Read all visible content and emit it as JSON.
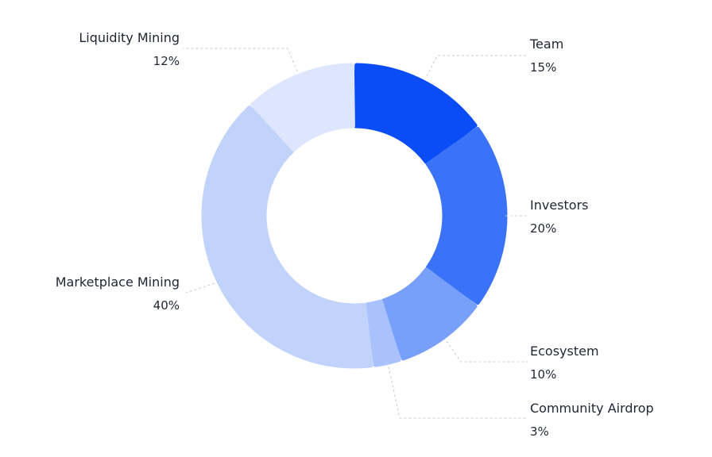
{
  "chart_data": {
    "type": "pie",
    "variant": "donut",
    "slices": [
      {
        "label": "Team",
        "value": 15,
        "value_label": "15%",
        "color": "#0a4cf6"
      },
      {
        "label": "Investors",
        "value": 20,
        "value_label": "20%",
        "color": "#3b73f8"
      },
      {
        "label": "Ecosystem",
        "value": 10,
        "value_label": "10%",
        "color": "#78a0fb"
      },
      {
        "label": "Community Airdrop",
        "value": 3,
        "value_label": "3%",
        "color": "#a9c2fc"
      },
      {
        "label": "Marketplace Mining",
        "value": 40,
        "value_label": "40%",
        "color": "#c1d3fb"
      },
      {
        "label": "Liquidity Mining",
        "value": 12,
        "value_label": "12%",
        "color": "#dde6fd"
      }
    ],
    "legend": "none",
    "labels": "outside with dashed leader lines"
  }
}
